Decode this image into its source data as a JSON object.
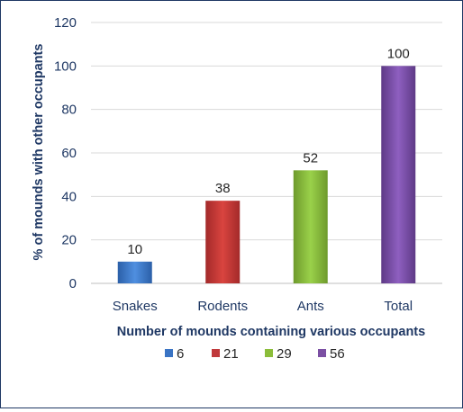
{
  "chart_data": {
    "type": "bar",
    "categories": [
      "Snakes",
      "Rodents",
      "Ants",
      "Total"
    ],
    "values": [
      10,
      38,
      52,
      100
    ],
    "data_labels": [
      "10",
      "38",
      "52",
      "100"
    ],
    "ylabel": "% of  mounds with other occupants",
    "xlabel": "Number of mounds  containing various occupants",
    "ylim": [
      0,
      120
    ],
    "yticks": [
      0,
      20,
      40,
      60,
      80,
      100,
      120
    ],
    "grid": true,
    "legend_position": "bottom",
    "legend": [
      {
        "name": "6",
        "color": "#3a74c4"
      },
      {
        "name": "21",
        "color": "#c0393b"
      },
      {
        "name": "29",
        "color": "#8bbd3a"
      },
      {
        "name": "56",
        "color": "#7b4fa3"
      }
    ],
    "bar_colors": [
      {
        "light": "#4f8fe0",
        "dark": "#2b5fa8"
      },
      {
        "light": "#d9443f",
        "dark": "#a32a2a"
      },
      {
        "light": "#9ad14a",
        "dark": "#6e9a2c"
      },
      {
        "light": "#8e5fc0",
        "dark": "#5e3a86"
      }
    ],
    "axis_text_color": "#1f3864",
    "gridline_color": "#d9d9d9"
  }
}
